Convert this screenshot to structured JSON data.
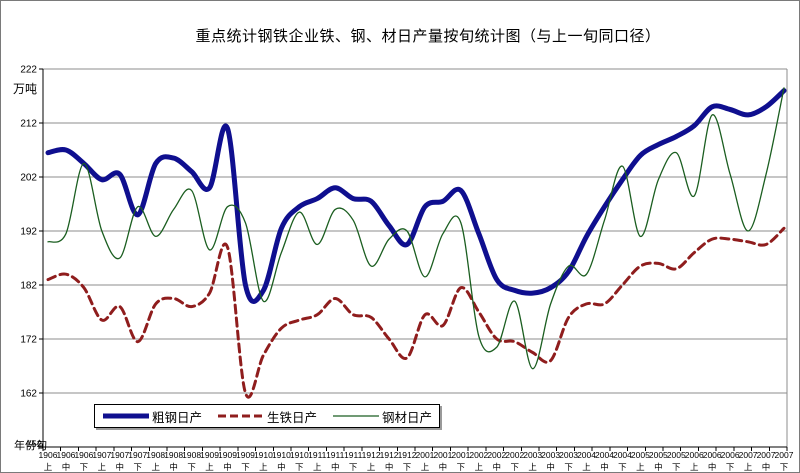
{
  "title": "重点统计钢铁企业铁、钢、材日产量按旬统计图（与上一旬同口径）",
  "y_axis": {
    "unit_label": "万吨",
    "tick_labels": [
      "222",
      "212",
      "202",
      "192",
      "182",
      "172",
      "162"
    ],
    "overlapped_min_label": "152"
  },
  "x_axis": {
    "title_label": "年份旬"
  },
  "legend": {
    "items": [
      {
        "label": "粗钢日产"
      },
      {
        "label": "生铁日产"
      },
      {
        "label": "钢材日产"
      }
    ]
  },
  "colors": {
    "crude_steel": "#0f0f8f",
    "pig_iron": "#8f1d1d",
    "steel_products": "#1b5e20",
    "gridline": "#8c8c8c",
    "axis": "#000000"
  },
  "chart_data": {
    "type": "line",
    "smoothed": true,
    "grid": true,
    "legend_position": "bottom-inside",
    "title": "重点统计钢铁企业铁、钢、材日产量按旬统计图（与上一旬同口径）",
    "ylabel": "万吨",
    "xlabel": "年份旬",
    "ylim": [
      152,
      222
    ],
    "y_tick_step": 10,
    "y_labeled_ticks": [
      162,
      172,
      182,
      192,
      202,
      212,
      222
    ],
    "categories": [
      "1906上",
      "1906中",
      "1906下",
      "1907上",
      "1907中",
      "1907下",
      "1908上",
      "1908中",
      "1908下",
      "1909上",
      "1909中",
      "1909下",
      "1910上",
      "1910中",
      "1910下",
      "1911上",
      "1911中",
      "1911下",
      "1912上",
      "1912中",
      "1912下",
      "2001上",
      "2001中",
      "2001下",
      "2002上",
      "2002中",
      "2002下",
      "2003上",
      "2003中",
      "2003下",
      "2004上",
      "2004中",
      "2004下",
      "2005上",
      "2005中",
      "2005下",
      "2006上",
      "2006中",
      "2006下",
      "2007上",
      "2007中",
      "2007下"
    ],
    "series": [
      {
        "name": "粗钢日产",
        "color": "#0f0f8f",
        "line_width": 5,
        "dash": null,
        "values": [
          206.5,
          207,
          204.5,
          201.5,
          202.5,
          195,
          204.5,
          205.5,
          203,
          200,
          211,
          182,
          181,
          192.5,
          196.5,
          198,
          200,
          198,
          197.5,
          193,
          189.5,
          196.5,
          197.5,
          199.5,
          191.5,
          183,
          181,
          180.5,
          181.5,
          184.5,
          191,
          196.5,
          201.5,
          206,
          208,
          209.5,
          211.5,
          215,
          214.5,
          213.5,
          215,
          218
        ]
      },
      {
        "name": "生铁日产",
        "color": "#8f1d1d",
        "line_width": 3,
        "dash": [
          8,
          5
        ],
        "values": [
          183,
          184,
          181.5,
          175.5,
          178,
          171.5,
          178.5,
          179.5,
          178,
          180.5,
          189,
          162,
          169,
          174,
          175.5,
          176.5,
          179.5,
          176.5,
          176,
          172,
          168.5,
          176.5,
          174.5,
          181.5,
          177,
          172,
          171.5,
          169.5,
          168,
          176,
          178.5,
          178.5,
          182,
          185.5,
          186,
          185,
          188,
          190.5,
          190.5,
          190,
          189.5,
          192.5
        ]
      },
      {
        "name": "钢材日产",
        "color": "#1b5e20",
        "line_width": 1.3,
        "dash": null,
        "values": [
          190,
          191.5,
          204.5,
          192,
          187,
          196.5,
          191,
          196,
          199.5,
          188.5,
          196.5,
          193.5,
          179,
          188,
          195.5,
          189.5,
          196,
          194,
          185.5,
          190.5,
          192,
          183.5,
          191.5,
          193.5,
          172.5,
          170.5,
          179,
          166.5,
          178.5,
          185.5,
          184,
          194,
          204,
          191,
          201.5,
          206.5,
          198.5,
          213.5,
          202.5,
          192,
          202.5,
          218.5
        ]
      }
    ]
  }
}
